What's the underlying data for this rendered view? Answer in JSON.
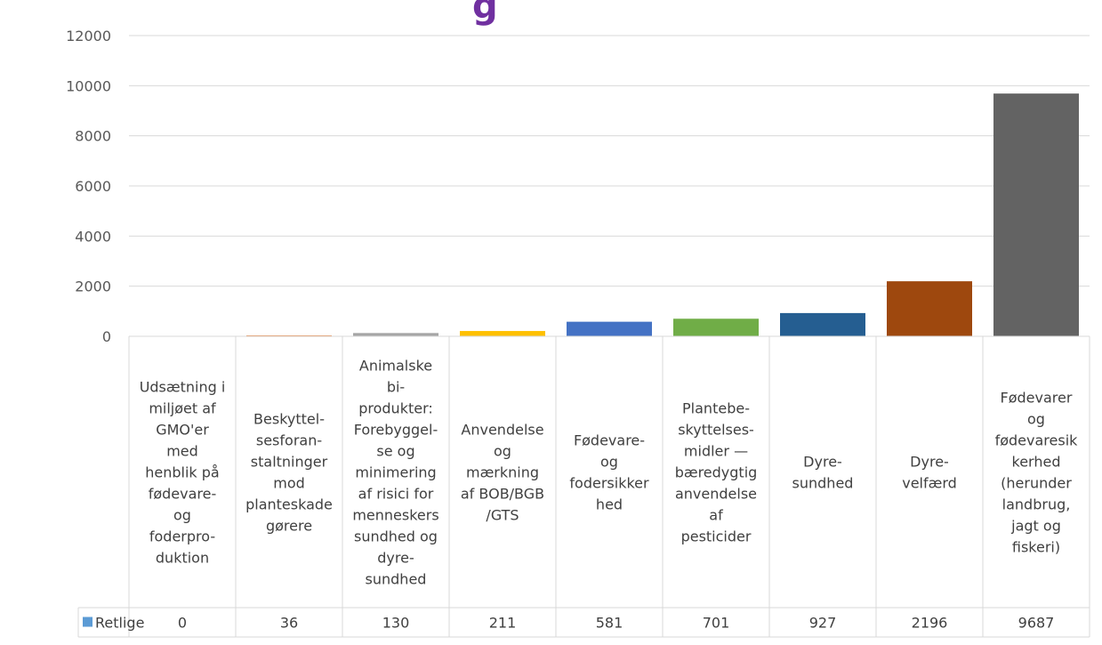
{
  "chart_data": {
    "type": "bar",
    "title": "g",
    "categories": [
      "Udsætning i miljøet af GMO'er med henblik på fødevare- og foderproduktion",
      "Beskyttelsesforanstaltninger mod planteskadegørere",
      "Animalske biprodukter: Forebyggelse og minimering af risici for menneskers sundhed og dyresundhed",
      "Anvendelse og mærkning af BOB/BGB/GTS",
      "Fødevare- og fodersikkerhed",
      "Plantebeskyttelsesmidler — bæredygtig anvendelse af pesticider",
      "Dyresundhed",
      "Dyrevelfærd",
      "Fødevarer og fødevaresikkerhed (herunder landbrug, jagt og fiskeri)"
    ],
    "category_lines": [
      [
        "Udsætning i",
        "miljøet af",
        "GMO'er",
        "med",
        "henblik på",
        "fødevare-",
        "og",
        "foderpro-",
        "duktion"
      ],
      [
        "Beskyttel-",
        "sesforan-",
        "staltninger",
        "mod",
        "planteskade",
        "gørere"
      ],
      [
        "Animalske",
        "bi-",
        "produkter:",
        "Forebyggel-",
        "se og",
        "minimering",
        "af risici for",
        "menneskers",
        "sundhed og",
        "dyre-",
        "sundhed"
      ],
      [
        "Anvendelse",
        "og",
        "mærkning",
        "af BOB/BGB",
        "/GTS"
      ],
      [
        "Fødevare-",
        "og",
        "fodersikker",
        "hed"
      ],
      [
        "Plantebe-",
        "skyttelses-",
        "midler —",
        "bæredygtig",
        "anvendelse",
        "af",
        "pesticider"
      ],
      [
        "Dyre-",
        "sundhed"
      ],
      [
        "Dyre-",
        "velfærd"
      ],
      [
        "Fødevarer",
        "og",
        "fødevaresik",
        "kerhed",
        "(herunder",
        "landbrug,",
        "jagt og",
        "fiskeri)"
      ]
    ],
    "series": [
      {
        "name": "Retlige",
        "values": [
          0,
          36,
          130,
          211,
          581,
          701,
          927,
          2196,
          9687
        ]
      }
    ],
    "bar_colors": [
      "#ED7D31",
      "#ED7D31",
      "#A5A5A5",
      "#FFC000",
      "#4472C4",
      "#70AD47",
      "#255E91",
      "#9E480E",
      "#636363"
    ],
    "legend_color": "#5B9BD5",
    "title_color": "#7030A0",
    "ylim": [
      0,
      12000
    ],
    "yticks": [
      0,
      2000,
      4000,
      6000,
      8000,
      10000,
      12000
    ],
    "grid": true,
    "legend": "data-table"
  }
}
